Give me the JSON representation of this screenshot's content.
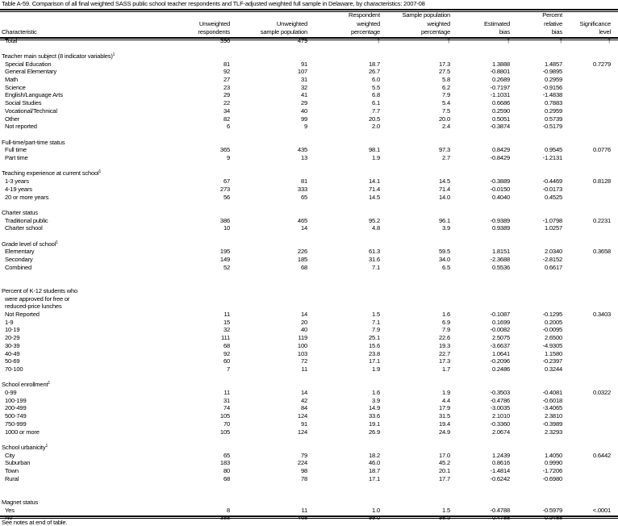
{
  "title": "Table A-59. Comparison of all final weighted SASS public school teacher respondents and TLF-adjusted weighted full sample in Delaware, by characteristics: 2007-08",
  "columns": [
    {
      "lines": [
        "",
        "",
        "Characteristic"
      ]
    },
    {
      "lines": [
        "",
        "Unweighted",
        "respondents"
      ]
    },
    {
      "lines": [
        "",
        "Unweighted",
        "sample population"
      ]
    },
    {
      "lines": [
        "Respondent",
        "weighted",
        "percentage"
      ]
    },
    {
      "lines": [
        "Sample population",
        "weighted",
        "percentage"
      ]
    },
    {
      "lines": [
        "",
        "Estimated",
        "bias"
      ]
    },
    {
      "lines": [
        "Percent",
        "relative",
        "bias"
      ]
    },
    {
      "lines": [
        "",
        "Significance",
        "level"
      ]
    }
  ],
  "total": {
    "label": "Total",
    "values": [
      "396",
      "479",
      "†",
      "†",
      "†",
      "†",
      "†"
    ]
  },
  "sections": [
    {
      "lines": [
        "Teacher main subject (8 indicator variables)"
      ],
      "footnote": "1",
      "rows": [
        {
          "label": "Special Education",
          "values": [
            "81",
            "91",
            "18.7",
            "17.3",
            "1.3888",
            "1.4857",
            "0.7279"
          ]
        },
        {
          "label": "General Elementary",
          "values": [
            "92",
            "107",
            "26.7",
            "27.5",
            "-0.8801",
            "-0.9895",
            ""
          ]
        },
        {
          "label": "Math",
          "values": [
            "27",
            "31",
            "6.0",
            "5.8",
            "0.2689",
            "0.2959",
            ""
          ]
        },
        {
          "label": "Science",
          "values": [
            "23",
            "32",
            "5.5",
            "6.2",
            "-0.7197",
            "-0.9156",
            ""
          ]
        },
        {
          "label": "English/Language Arts",
          "values": [
            "29",
            "41",
            "6.8",
            "7.9",
            "-1.1031",
            "-1.4838",
            ""
          ]
        },
        {
          "label": "Social Studies",
          "values": [
            "22",
            "29",
            "6.1",
            "5.4",
            "0.6686",
            "0.7883",
            ""
          ]
        },
        {
          "label": "Vocational/Technical",
          "values": [
            "34",
            "40",
            "7.7",
            "7.5",
            "0.2590",
            "0.2959",
            ""
          ]
        },
        {
          "label": "Other",
          "values": [
            "82",
            "99",
            "20.5",
            "20.0",
            "0.5051",
            "0.5739",
            ""
          ]
        },
        {
          "label": "Not reported",
          "values": [
            "6",
            "9",
            "2.0",
            "2.4",
            "-0.3874",
            "-0.5179",
            ""
          ]
        }
      ]
    },
    {
      "lines": [
        "Full-time/part-time status"
      ],
      "footnote": "",
      "rows": [
        {
          "label": "Full time",
          "values": [
            "365",
            "435",
            "98.1",
            "97.3",
            "0.8429",
            "0.9545",
            "0.0776"
          ]
        },
        {
          "label": "Part time",
          "values": [
            "9",
            "13",
            "1.9",
            "2.7",
            "-0.8429",
            "-1.2131",
            ""
          ]
        }
      ]
    },
    {
      "lines": [
        "Teaching experience at current school"
      ],
      "footnote": "1",
      "rows": [
        {
          "label": "1-3 years",
          "values": [
            "67",
            "81",
            "14.1",
            "14.5",
            "-0.3889",
            "-0.4469",
            "0.8128"
          ]
        },
        {
          "label": "4-19 years",
          "values": [
            "273",
            "333",
            "71.4",
            "71.4",
            "-0.0150",
            "-0.0173",
            ""
          ]
        },
        {
          "label": "20 or more years",
          "values": [
            "56",
            "65",
            "14.5",
            "14.0",
            "0.4040",
            "0.4525",
            ""
          ]
        }
      ]
    },
    {
      "lines": [
        "Charter status"
      ],
      "footnote": "",
      "rows": [
        {
          "label": "Traditional public",
          "values": [
            "386",
            "465",
            "95.2",
            "96.1",
            "-0.9389",
            "-1.0798",
            "0.2231"
          ]
        },
        {
          "label": "Charter school",
          "values": [
            "10",
            "14",
            "4.8",
            "3.9",
            "0.9389",
            "1.0257",
            ""
          ]
        }
      ]
    },
    {
      "lines": [
        "Grade level of school"
      ],
      "footnote": "1",
      "rows": [
        {
          "label": "Elementary",
          "values": [
            "195",
            "226",
            "61.3",
            "59.5",
            "1.8151",
            "2.0340",
            "0.3658"
          ]
        },
        {
          "label": "Secondary",
          "values": [
            "149",
            "185",
            "31.6",
            "34.0",
            "-2.3688",
            "-2.8152",
            ""
          ]
        },
        {
          "label": "Combined",
          "values": [
            "52",
            "68",
            "7.1",
            "6.5",
            "0.5536",
            "0.6617",
            ""
          ]
        }
      ]
    },
    {
      "lines": [
        "Percent of K-12 students who",
        "were approved for free or",
        "reduced-price lunches"
      ],
      "footnote": "",
      "extraGap": 1,
      "rows": [
        {
          "label": "Not Reported",
          "values": [
            "11",
            "14",
            "1.5",
            "1.6",
            "-0.1087",
            "-0.1295",
            "0.3403"
          ]
        },
        {
          "label": "1-9",
          "values": [
            "15",
            "20",
            "7.1",
            "6.9",
            "0.1699",
            "0.2005",
            ""
          ]
        },
        {
          "label": "10-19",
          "values": [
            "32",
            "40",
            "7.9",
            "7.9",
            "-0.0082",
            "-0.0095",
            ""
          ]
        },
        {
          "label": "20-29",
          "values": [
            "111",
            "119",
            "25.1",
            "22.6",
            "2.5075",
            "2.6500",
            ""
          ]
        },
        {
          "label": "30-39",
          "values": [
            "68",
            "100",
            "15.6",
            "19.3",
            "-3.6637",
            "-4.9305",
            ""
          ]
        },
        {
          "label": "40-49",
          "values": [
            "92",
            "103",
            "23.8",
            "22.7",
            "1.0641",
            "1.1580",
            ""
          ]
        },
        {
          "label": "50-69",
          "values": [
            "60",
            "72",
            "17.1",
            "17.3",
            "-0.2096",
            "-0.2397",
            ""
          ]
        },
        {
          "label": "70-100",
          "values": [
            "7",
            "11",
            "1.9",
            "1.7",
            "0.2486",
            "0.3244",
            ""
          ]
        }
      ]
    },
    {
      "lines": [
        "School enrollment"
      ],
      "footnote": "1",
      "rows": [
        {
          "label": "0-99",
          "values": [
            "11",
            "14",
            "1.6",
            "1.9",
            "-0.3503",
            "-0.4081",
            "0.0322"
          ]
        },
        {
          "label": "100-199",
          "values": [
            "31",
            "42",
            "3.9",
            "4.4",
            "-0.4786",
            "-0.6018",
            ""
          ]
        },
        {
          "label": "200-499",
          "values": [
            "74",
            "84",
            "14.9",
            "17.9",
            "-3.0035",
            "-3.4065",
            ""
          ]
        },
        {
          "label": "500-749",
          "values": [
            "105",
            "124",
            "33.6",
            "31.5",
            "2.1010",
            "2.3810",
            ""
          ]
        },
        {
          "label": "750-999",
          "values": [
            "70",
            "91",
            "19.1",
            "19.4",
            "-0.3360",
            "-0.3989",
            ""
          ]
        },
        {
          "label": "1000 or more",
          "values": [
            "105",
            "124",
            "26.9",
            "24.9",
            "2.0674",
            "2.3293",
            ""
          ]
        }
      ]
    },
    {
      "lines": [
        "School urbanicity"
      ],
      "footnote": "1",
      "rows": [
        {
          "label": "City",
          "values": [
            "65",
            "79",
            "18.2",
            "17.0",
            "1.2439",
            "1.4050",
            "0.6442"
          ]
        },
        {
          "label": "Suburban",
          "values": [
            "183",
            "224",
            "46.0",
            "45.2",
            "0.8616",
            "0.9990",
            ""
          ]
        },
        {
          "label": "Town",
          "values": [
            "80",
            "98",
            "18.7",
            "20.1",
            "-1.4814",
            "-1.7206",
            ""
          ]
        },
        {
          "label": "Rural",
          "values": [
            "68",
            "78",
            "17.1",
            "17.7",
            "-0.6242",
            "-0.6980",
            ""
          ]
        }
      ]
    },
    {
      "lines": [
        "Magnet status"
      ],
      "footnote": "",
      "extraGap": 1,
      "rows": [
        {
          "label": "Yes",
          "values": [
            "8",
            "11",
            "1.0",
            "1.5",
            "-0.4788",
            "-0.5979",
            "<.0001"
          ]
        },
        {
          "label": "No",
          "values": [
            "388",
            "468",
            "99.0",
            "98.5",
            "0.4788",
            "0.5488",
            ""
          ]
        }
      ]
    }
  ],
  "notes": "See notes at end of table."
}
